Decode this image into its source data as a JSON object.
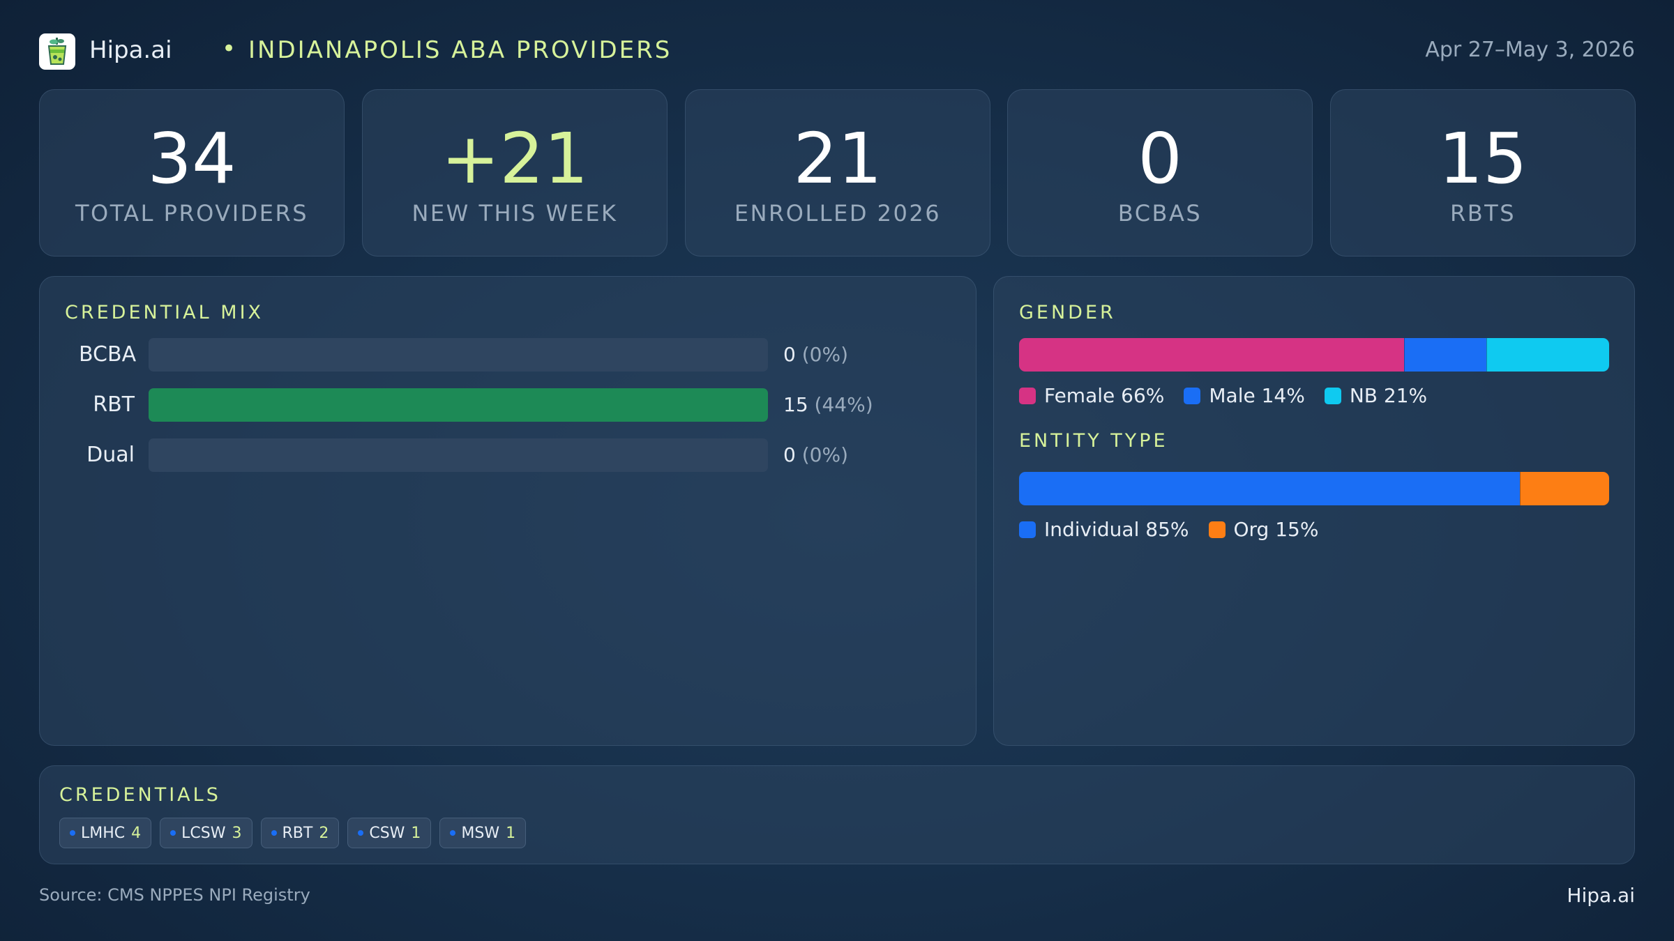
{
  "header": {
    "brand": "Hipa.ai",
    "separator": "•",
    "title": "INDIANAPOLIS ABA PROVIDERS",
    "date_range": "Apr 27–May 3, 2026",
    "logo_icon": "drink-cup-icon"
  },
  "stats": [
    {
      "value": "34",
      "label": "TOTAL PROVIDERS"
    },
    {
      "value": "+21",
      "label": "NEW THIS WEEK"
    },
    {
      "value": "21",
      "label": "ENROLLED 2026"
    },
    {
      "value": "0",
      "label": "BCBAS"
    },
    {
      "value": "15",
      "label": "RBTS"
    }
  ],
  "chart_data": [
    {
      "type": "bar",
      "title": "CREDENTIAL MIX",
      "categories": [
        "BCBA",
        "RBT",
        "Dual"
      ],
      "values": [
        0,
        15,
        0
      ],
      "value_labels": [
        "0",
        "15",
        "0"
      ],
      "percent_labels": [
        "(0%)",
        "(44%)",
        "(0%)"
      ],
      "max": 15,
      "color": "#1d8a56"
    },
    {
      "type": "bar",
      "title": "GENDER",
      "stacked": true,
      "series": [
        {
          "name": "Female",
          "value": 66,
          "label": "Female 66%",
          "color": "#d63384"
        },
        {
          "name": "Male",
          "value": 14,
          "label": "Male 14%",
          "color": "#1a6ef5"
        },
        {
          "name": "NB",
          "value": 21,
          "label": "NB 21%",
          "color": "#0fcaf0"
        }
      ]
    },
    {
      "type": "bar",
      "title": "ENTITY TYPE",
      "stacked": true,
      "series": [
        {
          "name": "Individual",
          "value": 85,
          "label": "Individual 85%",
          "color": "#1a6ef5"
        },
        {
          "name": "Org",
          "value": 15,
          "label": "Org 15%",
          "color": "#fd7e14"
        }
      ]
    }
  ],
  "credentials": {
    "title": "CREDENTIALS",
    "items": [
      {
        "label": "LMHC",
        "count": "4"
      },
      {
        "label": "LCSW",
        "count": "3"
      },
      {
        "label": "RBT",
        "count": "2"
      },
      {
        "label": "CSW",
        "count": "1"
      },
      {
        "label": "MSW",
        "count": "1"
      }
    ]
  },
  "footer": {
    "source": "Source: CMS NPPES NPI Registry",
    "brand": "Hipa.ai"
  }
}
